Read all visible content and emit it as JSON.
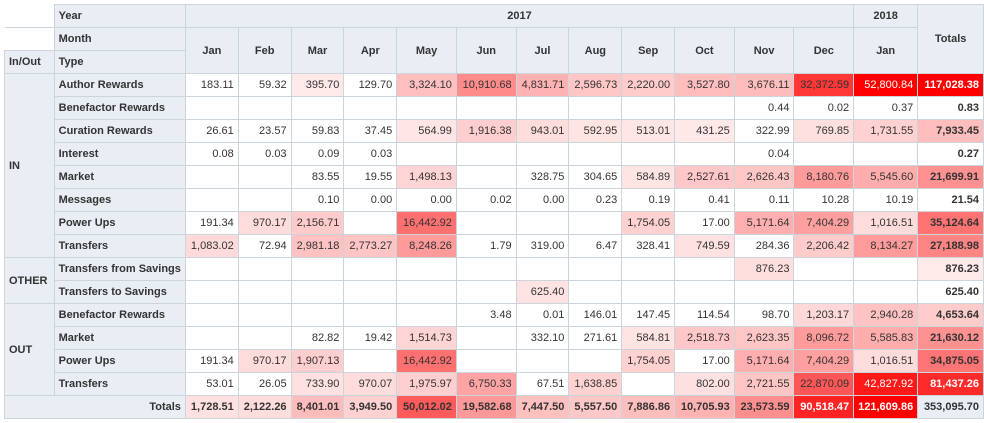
{
  "header": {
    "year_label": "Year",
    "month_label": "Month",
    "inout_label": "In/Out",
    "type_label": "Type",
    "totals_label": "Totals",
    "years": [
      {
        "label": "2017",
        "span": 12
      },
      {
        "label": "2018",
        "span": 1
      }
    ],
    "months": [
      "Jan",
      "Feb",
      "Mar",
      "Apr",
      "May",
      "Jun",
      "Jul",
      "Aug",
      "Sep",
      "Oct",
      "Nov",
      "Dec",
      "Jan"
    ]
  },
  "groups": [
    {
      "label": "IN",
      "rows": [
        {
          "type": "Author Rewards",
          "values": [
            "183.11",
            "59.32",
            "395.70",
            "129.70",
            "3,324.10",
            "10,910.68",
            "4,831.71",
            "2,596.73",
            "2,220.00",
            "3,527.80",
            "3,676.11",
            "32,372.59",
            "52,800.84"
          ],
          "total": "117,028.38"
        },
        {
          "type": "Benefactor Rewards",
          "values": [
            "",
            "",
            "",
            "",
            "",
            "",
            "",
            "",
            "",
            "",
            "0.44",
            "0.02",
            "0.37"
          ],
          "total": "0.83"
        },
        {
          "type": "Curation Rewards",
          "values": [
            "26.61",
            "23.57",
            "59.83",
            "37.45",
            "564.99",
            "1,916.38",
            "943.01",
            "592.95",
            "513.01",
            "431.25",
            "322.99",
            "769.85",
            "1,731.55"
          ],
          "total": "7,933.45"
        },
        {
          "type": "Interest",
          "values": [
            "0.08",
            "0.03",
            "0.09",
            "0.03",
            "",
            "",
            "",
            "",
            "",
            "",
            "0.04",
            "",
            ""
          ],
          "total": "0.27"
        },
        {
          "type": "Market",
          "values": [
            "",
            "",
            "83.55",
            "19.55",
            "1,498.13",
            "",
            "328.75",
            "304.65",
            "584.89",
            "2,527.61",
            "2,626.43",
            "8,180.76",
            "5,545.60"
          ],
          "total": "21,699.91"
        },
        {
          "type": "Messages",
          "values": [
            "",
            "",
            "0.10",
            "0.00",
            "0.00",
            "0.02",
            "0.00",
            "0.23",
            "0.19",
            "0.41",
            "0.11",
            "10.28",
            "10.19"
          ],
          "total": "21.54"
        },
        {
          "type": "Power Ups",
          "values": [
            "191.34",
            "970.17",
            "2,156.71",
            "",
            "16,442.92",
            "",
            "",
            "",
            "1,754.05",
            "17.00",
            "5,171.64",
            "7,404.29",
            "1,016.51"
          ],
          "total": "35,124.64"
        },
        {
          "type": "Transfers",
          "values": [
            "1,083.02",
            "72.94",
            "2,981.18",
            "2,773.27",
            "8,248.26",
            "1.79",
            "319.00",
            "6.47",
            "328.41",
            "749.59",
            "284.36",
            "2,206.42",
            "8,134.27"
          ],
          "total": "27,188.98"
        }
      ]
    },
    {
      "label": "OTHER",
      "rows": [
        {
          "type": "Transfers from Savings",
          "values": [
            "",
            "",
            "",
            "",
            "",
            "",
            "",
            "",
            "",
            "",
            "876.23",
            "",
            ""
          ],
          "total": "876.23"
        },
        {
          "type": "Transfers to Savings",
          "values": [
            "",
            "",
            "",
            "",
            "",
            "",
            "625.40",
            "",
            "",
            "",
            "",
            "",
            ""
          ],
          "total": "625.40"
        }
      ]
    },
    {
      "label": "OUT",
      "rows": [
        {
          "type": "Benefactor Rewards",
          "values": [
            "",
            "",
            "",
            "",
            "",
            "3.48",
            "0.01",
            "146.01",
            "147.45",
            "114.54",
            "98.70",
            "1,203.17",
            "2,940.28"
          ],
          "total": "4,653.64"
        },
        {
          "type": "Market",
          "values": [
            "",
            "",
            "82.82",
            "19.42",
            "1,514.73",
            "",
            "332.10",
            "271.61",
            "584.81",
            "2,518.73",
            "2,623.35",
            "8,096.72",
            "5,585.83"
          ],
          "total": "21,630.12"
        },
        {
          "type": "Power Ups",
          "values": [
            "191.34",
            "970.17",
            "1,907.13",
            "",
            "16,442.92",
            "",
            "",
            "",
            "1,754.05",
            "17.00",
            "5,171.64",
            "7,404.29",
            "1,016.51"
          ],
          "total": "34,875.05"
        },
        {
          "type": "Transfers",
          "values": [
            "53.01",
            "26.05",
            "733.90",
            "970.07",
            "1,975.97",
            "6,750.33",
            "67.51",
            "1,638.85",
            "",
            "802.00",
            "2,721.55",
            "22,870.09",
            "42,827.92"
          ],
          "total": "81,437.26"
        }
      ]
    }
  ],
  "totals_row": {
    "label": "Totals",
    "values": [
      "1,728.51",
      "2,122.26",
      "8,401.01",
      "3,949.50",
      "50,012.02",
      "19,582.68",
      "7,447.50",
      "5,557.50",
      "7,886.86",
      "10,705.93",
      "23,573.59",
      "90,518.47",
      "121,609.86"
    ],
    "grand_total": "353,095.70"
  },
  "heat_colors": {
    "low": "#ffffff",
    "high": "#ff0000"
  }
}
